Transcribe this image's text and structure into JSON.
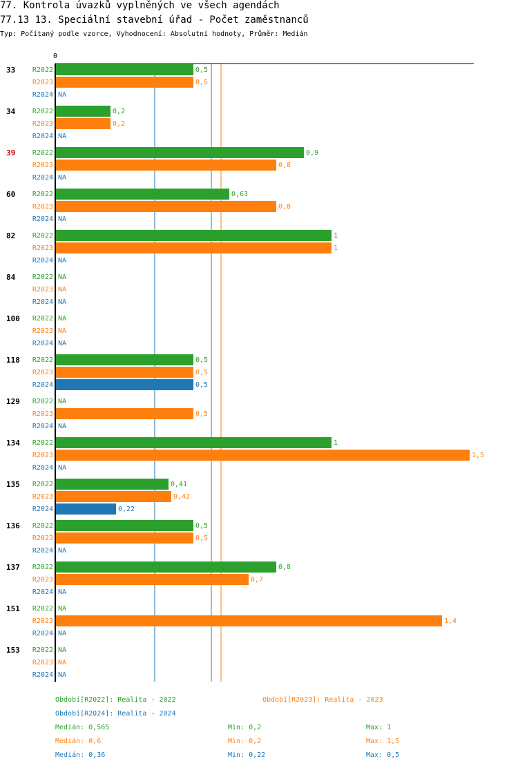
{
  "header": {
    "title_line1": "77. Kontrola úvazků vyplněných ve všech agendách",
    "title_line2": "77.13 13. Speciální stavební úřad - Počet zaměstnanců",
    "subtitle": "Typ: Počítaný podle vzorce, Vyhodnocení: Absolutní hodnoty, Průměr: Medián"
  },
  "chart_data": {
    "type": "bar",
    "orientation": "horizontal",
    "x_tick_label": "0",
    "xlim": [
      0,
      1.5
    ],
    "series": [
      {
        "name": "R2022",
        "color": "#2ca02c"
      },
      {
        "name": "R2023",
        "color": "#ff7f0e"
      },
      {
        "name": "R2024",
        "color": "#1f77b4"
      }
    ],
    "categories": [
      {
        "label": "33",
        "highlight": false,
        "values": [
          0.5,
          0.5,
          null
        ],
        "labels": [
          "0,5",
          "0,5",
          "NA"
        ]
      },
      {
        "label": "34",
        "highlight": false,
        "values": [
          0.2,
          0.2,
          null
        ],
        "labels": [
          "0,2",
          "0,2",
          "NA"
        ]
      },
      {
        "label": "39",
        "highlight": true,
        "values": [
          0.9,
          0.8,
          null
        ],
        "labels": [
          "0,9",
          "0,8",
          "NA"
        ]
      },
      {
        "label": "60",
        "highlight": false,
        "values": [
          0.63,
          0.8,
          null
        ],
        "labels": [
          "0,63",
          "0,8",
          "NA"
        ]
      },
      {
        "label": "82",
        "highlight": false,
        "values": [
          1,
          1,
          null
        ],
        "labels": [
          "1",
          "1",
          "NA"
        ]
      },
      {
        "label": "84",
        "highlight": false,
        "values": [
          null,
          null,
          null
        ],
        "labels": [
          "NA",
          "NA",
          "NA"
        ]
      },
      {
        "label": "100",
        "highlight": false,
        "values": [
          null,
          null,
          null
        ],
        "labels": [
          "NA",
          "NA",
          "NA"
        ]
      },
      {
        "label": "118",
        "highlight": false,
        "values": [
          0.5,
          0.5,
          0.5
        ],
        "labels": [
          "0,5",
          "0,5",
          "0,5"
        ]
      },
      {
        "label": "129",
        "highlight": false,
        "values": [
          null,
          0.5,
          null
        ],
        "labels": [
          "NA",
          "0,5",
          "NA"
        ]
      },
      {
        "label": "134",
        "highlight": false,
        "values": [
          1,
          1.5,
          null
        ],
        "labels": [
          "1",
          "1,5",
          "NA"
        ]
      },
      {
        "label": "135",
        "highlight": false,
        "values": [
          0.41,
          0.42,
          0.22
        ],
        "labels": [
          "0,41",
          "0,42",
          "0,22"
        ]
      },
      {
        "label": "136",
        "highlight": false,
        "values": [
          0.5,
          0.5,
          null
        ],
        "labels": [
          "0,5",
          "0,5",
          "NA"
        ]
      },
      {
        "label": "137",
        "highlight": false,
        "values": [
          0.8,
          0.7,
          null
        ],
        "labels": [
          "0,8",
          "0,7",
          "NA"
        ]
      },
      {
        "label": "151",
        "highlight": false,
        "values": [
          null,
          1.4,
          null
        ],
        "labels": [
          "NA",
          "1,4",
          "NA"
        ]
      },
      {
        "label": "153",
        "highlight": false,
        "values": [
          null,
          null,
          null
        ],
        "labels": [
          "NA",
          "NA",
          "NA"
        ]
      }
    ],
    "medians": [
      0.565,
      0.6,
      0.36
    ]
  },
  "legend": {
    "period_2022": "Období[R2022]: Realita - 2022",
    "period_2023": "Období[R2023]: Realita - 2023",
    "period_2024": "Období[R2024]: Realita - 2024",
    "stats": [
      {
        "median": "Medián: 0,565",
        "min": "Min: 0,2",
        "max": "Max: 1"
      },
      {
        "median": "Medián: 0,6",
        "min": "Min: 0,2",
        "max": "Max: 1,5"
      },
      {
        "median": "Medián: 0,36",
        "min": "Min: 0,22",
        "max": "Max: 0,5"
      }
    ]
  },
  "colors": {
    "r2022": "#2ca02c",
    "r2023": "#ff7f0e",
    "r2024": "#1f77b4",
    "highlight": "#cc0000",
    "axis": "#000000"
  }
}
